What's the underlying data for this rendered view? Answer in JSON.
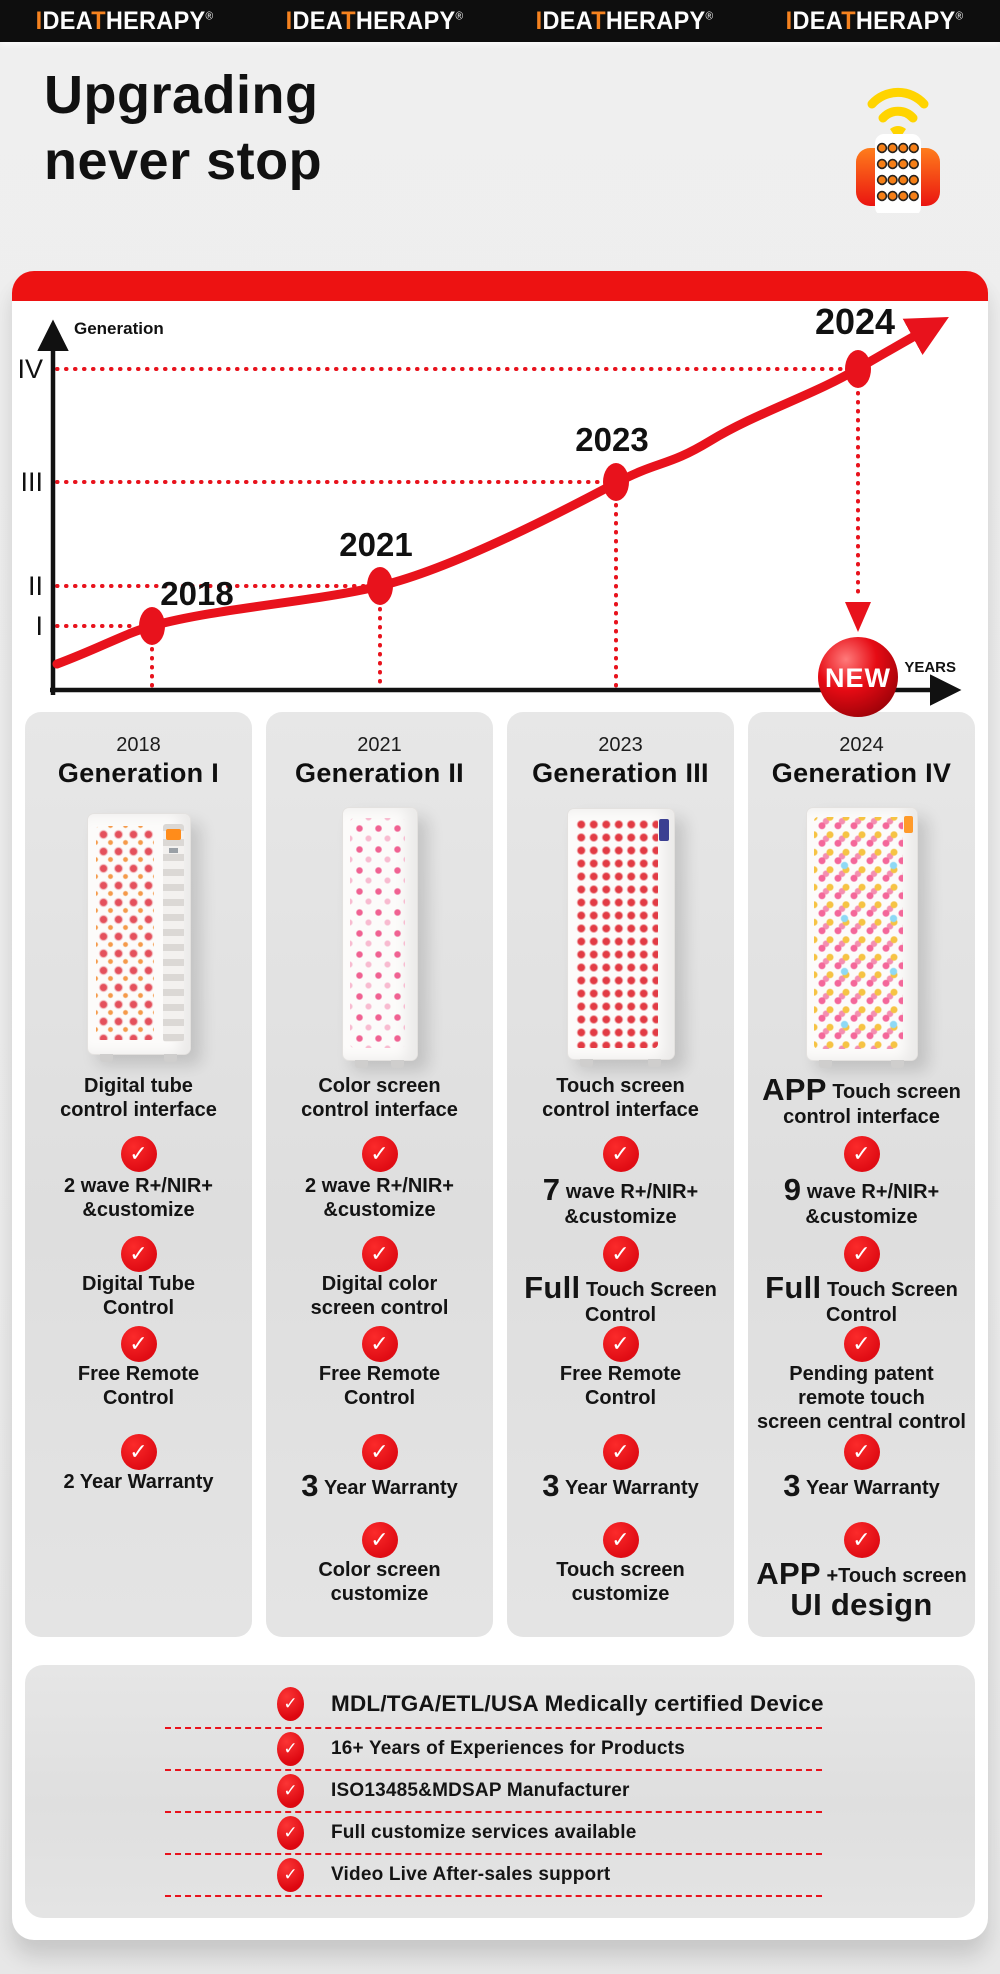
{
  "colors": {
    "accent_red": "#E8121C",
    "logo_orange": "#F5821F",
    "bar_black": "#0E0E0E",
    "card_gray": "#E3E3E3",
    "wifi_yellow": "#FFD400"
  },
  "icons": {
    "check": "✓",
    "hero_icon": "remote-control-with-wifi-signal"
  },
  "header": {
    "logo_repeat": 4,
    "logo": {
      "part1": "I",
      "part2": "DEA",
      "part3": "T",
      "part4": "HERAPY",
      "reg": "®"
    }
  },
  "hero": {
    "title_line1": "Upgrading",
    "title_line2": "never stop"
  },
  "chart": {
    "y_axis_label": "Generation",
    "x_axis_label": "YEARS",
    "badge": "NEW",
    "ticks": [
      "IV",
      "III",
      "II",
      "I"
    ],
    "points": [
      {
        "label": "2018",
        "generation": "I"
      },
      {
        "label": "2021",
        "generation": "II"
      },
      {
        "label": "2023",
        "generation": "III"
      },
      {
        "label": "2024",
        "generation": "IV"
      }
    ]
  },
  "chart_data": {
    "type": "line",
    "title": "Upgrading never stop — product generation timeline",
    "xlabel": "YEARS",
    "ylabel": "Generation",
    "x": [
      2018,
      2021,
      2023,
      2024
    ],
    "categories": [
      "2018",
      "2021",
      "2023",
      "2024"
    ],
    "values": [
      1,
      2,
      3,
      4
    ],
    "tick_labels_y": [
      "I",
      "II",
      "III",
      "IV"
    ],
    "annotations": [
      "NEW badge at 2024 point"
    ],
    "grid": "red dotted guide lines to each point",
    "line_color": "#E8121C"
  },
  "columns": [
    {
      "year": "2018",
      "generation": "Generation I",
      "product": "red-light-therapy-panel-gen1",
      "features": [
        {
          "check": false,
          "lines": [
            [
              {
                "t": "Digital tube"
              }
            ],
            [
              {
                "t": "control interface"
              }
            ]
          ]
        },
        {
          "check": true,
          "lines": [
            [
              {
                "t": "2 wave R+/NIR+"
              }
            ],
            [
              {
                "t": "&customize"
              }
            ]
          ]
        },
        {
          "check": true,
          "lines": [
            [
              {
                "t": "Digital Tube"
              }
            ],
            [
              {
                "t": "Control"
              }
            ]
          ]
        },
        {
          "check": true,
          "lines": [
            [
              {
                "t": "Free Remote"
              }
            ],
            [
              {
                "t": "Control"
              }
            ]
          ]
        },
        {
          "check": true,
          "lines": [
            [
              {
                "t": "2 Year Warranty"
              }
            ]
          ]
        }
      ]
    },
    {
      "year": "2021",
      "generation": "Generation II",
      "product": "red-light-therapy-panel-gen2",
      "features": [
        {
          "check": false,
          "lines": [
            [
              {
                "t": "Color screen"
              }
            ],
            [
              {
                "t": "control interface"
              }
            ]
          ]
        },
        {
          "check": true,
          "lines": [
            [
              {
                "t": "2 wave R+/NIR+"
              }
            ],
            [
              {
                "t": "&customize"
              }
            ]
          ]
        },
        {
          "check": true,
          "lines": [
            [
              {
                "t": "Digital color"
              }
            ],
            [
              {
                "t": "screen control"
              }
            ]
          ]
        },
        {
          "check": true,
          "lines": [
            [
              {
                "t": "Free Remote"
              }
            ],
            [
              {
                "t": "Control"
              }
            ]
          ]
        },
        {
          "check": true,
          "lines": [
            [
              {
                "b": "3"
              },
              {
                "t": " Year Warranty"
              }
            ]
          ]
        },
        {
          "check": true,
          "lines": [
            [
              {
                "t": "Color screen"
              }
            ],
            [
              {
                "t": "customize"
              }
            ]
          ]
        }
      ]
    },
    {
      "year": "2023",
      "generation": "Generation III",
      "product": "red-light-therapy-panel-gen3",
      "features": [
        {
          "check": false,
          "lines": [
            [
              {
                "t": "Touch screen"
              }
            ],
            [
              {
                "t": "control interface"
              }
            ]
          ]
        },
        {
          "check": true,
          "lines": [
            [
              {
                "b": "7"
              },
              {
                "t": " wave R+/NIR+"
              }
            ],
            [
              {
                "t": "&customize"
              }
            ]
          ]
        },
        {
          "check": true,
          "lines": [
            [
              {
                "b": "Full"
              },
              {
                "t": " Touch Screen"
              }
            ],
            [
              {
                "t": "Control"
              }
            ]
          ]
        },
        {
          "check": true,
          "lines": [
            [
              {
                "t": "Free Remote"
              }
            ],
            [
              {
                "t": "Control"
              }
            ]
          ]
        },
        {
          "check": true,
          "lines": [
            [
              {
                "b": "3"
              },
              {
                "t": " Year Warranty"
              }
            ]
          ]
        },
        {
          "check": true,
          "lines": [
            [
              {
                "t": "Touch screen"
              }
            ],
            [
              {
                "t": "customize"
              }
            ]
          ]
        }
      ]
    },
    {
      "year": "2024",
      "generation": "Generation IV",
      "product": "red-light-therapy-panel-gen4",
      "features": [
        {
          "check": false,
          "lines": [
            [
              {
                "b": "APP"
              },
              {
                "t": " Touch screen"
              }
            ],
            [
              {
                "t": "control interface"
              }
            ]
          ]
        },
        {
          "check": true,
          "lines": [
            [
              {
                "b": "9"
              },
              {
                "t": " wave R+/NIR+"
              }
            ],
            [
              {
                "t": "&customize"
              }
            ]
          ]
        },
        {
          "check": true,
          "lines": [
            [
              {
                "b": "Full"
              },
              {
                "t": " Touch Screen"
              }
            ],
            [
              {
                "t": "Control"
              }
            ]
          ]
        },
        {
          "check": true,
          "lines": [
            [
              {
                "t": "Pending patent"
              }
            ],
            [
              {
                "t": "remote touch"
              }
            ],
            [
              {
                "t": "screen central control"
              }
            ]
          ]
        },
        {
          "check": true,
          "lines": [
            [
              {
                "b": "3"
              },
              {
                "t": " Year Warranty"
              }
            ]
          ]
        },
        {
          "check": true,
          "lines": [
            [
              {
                "b": "APP"
              },
              {
                "t": " +Touch screen"
              }
            ],
            [
              {
                "b": "UI design"
              }
            ]
          ]
        }
      ]
    }
  ],
  "cert": {
    "items": [
      "MDL/TGA/ETL/USA Medically certified Device",
      "16+ Years of Experiences for Products",
      "ISO13485&MDSAP Manufacturer",
      "Full customize services available",
      "Video Live After-sales support"
    ]
  }
}
